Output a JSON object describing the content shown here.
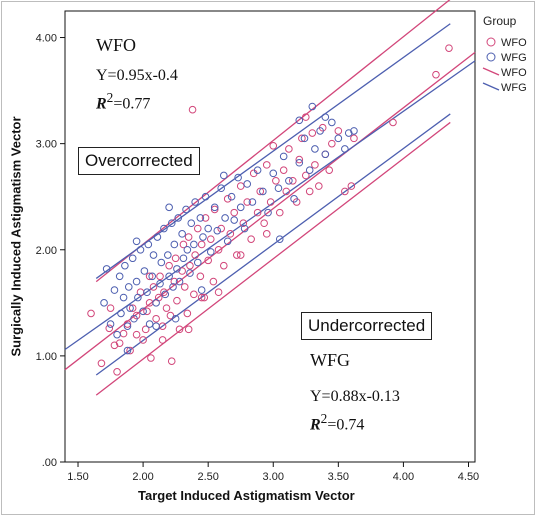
{
  "chart_data": {
    "type": "scatter",
    "xlabel": "Target Induced Astigmatism Vector",
    "ylabel": "Surgically Induced Astigmatism Vector",
    "xlim": [
      1.4,
      4.55
    ],
    "ylim": [
      0,
      4.25
    ],
    "xticks": [
      "1.50",
      "2.00",
      "2.50",
      "3.00",
      "3.50",
      "4.00",
      "4.50"
    ],
    "yticks": [
      ".00",
      "1.00",
      "2.00",
      "3.00",
      "4.00"
    ],
    "grid": false,
    "legend": {
      "title": "Group",
      "placement": "top-right",
      "entries": [
        {
          "label": "WFO",
          "kind": "marker",
          "color": "#d2467a"
        },
        {
          "label": "WFG",
          "kind": "marker",
          "color": "#4d5fb0"
        },
        {
          "label": "WFO",
          "kind": "line",
          "color": "#d2467a"
        },
        {
          "label": "WFG",
          "kind": "line",
          "color": "#4d5fb0"
        }
      ]
    },
    "series": [
      {
        "name": "WFO",
        "color": "#d2467a",
        "points": [
          [
            1.68,
            0.93
          ],
          [
            1.74,
            1.26
          ],
          [
            1.78,
            1.1
          ],
          [
            1.8,
            0.85
          ],
          [
            1.82,
            1.12
          ],
          [
            1.85,
            1.21
          ],
          [
            1.88,
            1.3
          ],
          [
            1.9,
            1.05
          ],
          [
            1.92,
            1.45
          ],
          [
            1.95,
            1.38
          ],
          [
            1.98,
            1.6
          ],
          [
            2.0,
            1.15
          ],
          [
            2.02,
            1.25
          ],
          [
            2.03,
            1.42
          ],
          [
            2.05,
            1.5
          ],
          [
            2.06,
            0.98
          ],
          [
            2.08,
            1.65
          ],
          [
            2.1,
            1.35
          ],
          [
            2.12,
            1.55
          ],
          [
            2.13,
            1.75
          ],
          [
            2.15,
            1.28
          ],
          [
            2.16,
            1.6
          ],
          [
            2.18,
            1.45
          ],
          [
            2.2,
            1.85
          ],
          [
            2.21,
            1.38
          ],
          [
            2.22,
            0.95
          ],
          [
            2.24,
            1.7
          ],
          [
            2.25,
            1.92
          ],
          [
            2.26,
            1.52
          ],
          [
            2.28,
            1.25
          ],
          [
            2.3,
            1.8
          ],
          [
            2.31,
            2.05
          ],
          [
            2.32,
            1.65
          ],
          [
            2.34,
            1.4
          ],
          [
            2.35,
            2.12
          ],
          [
            2.36,
            1.85
          ],
          [
            2.38,
            3.32
          ],
          [
            2.39,
            1.58
          ],
          [
            2.4,
            1.95
          ],
          [
            2.42,
            2.2
          ],
          [
            2.44,
            1.75
          ],
          [
            2.45,
            2.05
          ],
          [
            2.47,
            1.55
          ],
          [
            2.48,
            2.3
          ],
          [
            2.5,
            1.9
          ],
          [
            2.52,
            2.1
          ],
          [
            2.54,
            1.7
          ],
          [
            2.55,
            2.38
          ],
          [
            2.58,
            2.0
          ],
          [
            2.6,
            2.2
          ],
          [
            2.62,
            1.85
          ],
          [
            2.65,
            2.48
          ],
          [
            2.67,
            2.15
          ],
          [
            2.7,
            2.35
          ],
          [
            2.72,
            1.95
          ],
          [
            2.75,
            2.6
          ],
          [
            2.77,
            2.25
          ],
          [
            2.8,
            2.45
          ],
          [
            2.83,
            2.1
          ],
          [
            2.85,
            2.72
          ],
          [
            2.88,
            2.35
          ],
          [
            2.9,
            2.55
          ],
          [
            2.93,
            2.25
          ],
          [
            2.95,
            2.8
          ],
          [
            2.98,
            2.45
          ],
          [
            3.0,
            2.98
          ],
          [
            3.02,
            2.65
          ],
          [
            3.05,
            2.35
          ],
          [
            3.08,
            2.75
          ],
          [
            3.1,
            2.55
          ],
          [
            3.12,
            2.95
          ],
          [
            3.15,
            2.65
          ],
          [
            3.18,
            2.45
          ],
          [
            3.2,
            2.85
          ],
          [
            3.22,
            3.05
          ],
          [
            3.25,
            2.7
          ],
          [
            3.28,
            2.55
          ],
          [
            3.3,
            3.1
          ],
          [
            3.32,
            2.8
          ],
          [
            3.35,
            2.6
          ],
          [
            3.38,
            3.15
          ],
          [
            3.4,
            2.9
          ],
          [
            3.43,
            2.75
          ],
          [
            3.45,
            3.0
          ],
          [
            3.5,
            3.12
          ],
          [
            3.55,
            2.55
          ],
          [
            3.6,
            2.6
          ],
          [
            3.62,
            3.05
          ],
          [
            3.92,
            3.2
          ],
          [
            4.25,
            3.65
          ],
          [
            4.35,
            3.9
          ],
          [
            1.75,
            1.45
          ],
          [
            1.95,
            1.2
          ],
          [
            2.15,
            1.15
          ],
          [
            2.45,
            1.55
          ],
          [
            2.75,
            1.95
          ],
          [
            2.95,
            2.15
          ],
          [
            3.25,
            3.25
          ],
          [
            1.6,
            1.4
          ],
          [
            2.05,
            1.75
          ],
          [
            2.35,
            1.25
          ],
          [
            2.58,
            1.6
          ]
        ]
      },
      {
        "name": "WFG",
        "color": "#4d5fb0",
        "points": [
          [
            1.7,
            1.5
          ],
          [
            1.75,
            1.3
          ],
          [
            1.78,
            1.62
          ],
          [
            1.8,
            1.2
          ],
          [
            1.82,
            1.75
          ],
          [
            1.83,
            1.4
          ],
          [
            1.85,
            1.55
          ],
          [
            1.86,
            1.85
          ],
          [
            1.88,
            1.28
          ],
          [
            1.89,
            1.65
          ],
          [
            1.9,
            1.45
          ],
          [
            1.92,
            1.92
          ],
          [
            1.93,
            1.35
          ],
          [
            1.95,
            1.7
          ],
          [
            1.96,
            1.55
          ],
          [
            1.98,
            2.0
          ],
          [
            2.0,
            1.42
          ],
          [
            2.01,
            1.8
          ],
          [
            2.03,
            1.6
          ],
          [
            2.04,
            2.05
          ],
          [
            2.05,
            1.3
          ],
          [
            2.07,
            1.75
          ],
          [
            2.08,
            1.95
          ],
          [
            2.1,
            1.5
          ],
          [
            2.11,
            2.12
          ],
          [
            2.13,
            1.68
          ],
          [
            2.14,
            1.88
          ],
          [
            2.16,
            2.2
          ],
          [
            2.17,
            1.58
          ],
          [
            2.19,
            1.95
          ],
          [
            2.2,
            1.75
          ],
          [
            2.22,
            2.25
          ],
          [
            2.23,
            1.65
          ],
          [
            2.24,
            2.05
          ],
          [
            2.26,
            1.82
          ],
          [
            2.27,
            2.3
          ],
          [
            2.28,
            1.7
          ],
          [
            2.3,
            2.15
          ],
          [
            2.31,
            1.92
          ],
          [
            2.33,
            2.38
          ],
          [
            2.34,
            2.0
          ],
          [
            2.36,
            1.78
          ],
          [
            2.37,
            2.25
          ],
          [
            2.39,
            2.05
          ],
          [
            2.4,
            2.45
          ],
          [
            2.42,
            1.88
          ],
          [
            2.44,
            2.3
          ],
          [
            2.46,
            2.12
          ],
          [
            2.48,
            2.5
          ],
          [
            2.5,
            2.2
          ],
          [
            2.52,
            1.98
          ],
          [
            2.55,
            2.4
          ],
          [
            2.57,
            2.18
          ],
          [
            2.6,
            2.58
          ],
          [
            2.63,
            2.3
          ],
          [
            2.65,
            2.08
          ],
          [
            2.68,
            2.5
          ],
          [
            2.7,
            2.28
          ],
          [
            2.73,
            2.68
          ],
          [
            2.75,
            2.4
          ],
          [
            2.78,
            2.2
          ],
          [
            2.8,
            2.62
          ],
          [
            2.84,
            2.45
          ],
          [
            2.88,
            2.75
          ],
          [
            2.92,
            2.55
          ],
          [
            2.96,
            2.35
          ],
          [
            3.0,
            2.72
          ],
          [
            3.04,
            2.58
          ],
          [
            3.08,
            2.88
          ],
          [
            3.12,
            2.65
          ],
          [
            3.16,
            2.48
          ],
          [
            3.2,
            2.82
          ],
          [
            3.24,
            3.05
          ],
          [
            3.28,
            2.75
          ],
          [
            3.32,
            2.95
          ],
          [
            3.36,
            3.12
          ],
          [
            3.4,
            2.9
          ],
          [
            3.45,
            3.2
          ],
          [
            3.5,
            3.05
          ],
          [
            3.55,
            2.95
          ],
          [
            3.58,
            3.1
          ],
          [
            3.62,
            3.12
          ],
          [
            3.2,
            3.22
          ],
          [
            3.3,
            3.35
          ],
          [
            3.4,
            3.25
          ],
          [
            1.88,
            1.05
          ],
          [
            2.1,
            1.28
          ],
          [
            2.25,
            1.35
          ],
          [
            2.45,
            1.62
          ],
          [
            3.05,
            2.1
          ],
          [
            1.72,
            1.82
          ],
          [
            1.95,
            2.08
          ],
          [
            2.2,
            2.4
          ],
          [
            2.62,
            2.7
          ]
        ]
      }
    ],
    "fit_lines": [
      {
        "group": "WFO",
        "color": "#d2467a",
        "from": [
          1.4,
          0.87
        ],
        "to": [
          4.55,
          3.86
        ]
      },
      {
        "group": "WFG",
        "color": "#4d5fb0",
        "from": [
          1.4,
          1.06
        ],
        "to": [
          4.55,
          3.78
        ]
      },
      {
        "group": "WFO",
        "color": "#d2467a",
        "from": [
          1.64,
          1.7
        ],
        "to": [
          4.36,
          4.36
        ]
      },
      {
        "group": "WFO",
        "color": "#d2467a",
        "from": [
          1.64,
          0.63
        ],
        "to": [
          4.36,
          3.2
        ]
      },
      {
        "group": "WFG",
        "color": "#4d5fb0",
        "from": [
          1.64,
          1.73
        ],
        "to": [
          4.36,
          4.13
        ]
      },
      {
        "group": "WFG",
        "color": "#4d5fb0",
        "from": [
          1.64,
          0.82
        ],
        "to": [
          4.36,
          3.28
        ]
      }
    ],
    "annotations": {
      "overcorrected": "Overcorrected",
      "undercorrected": "Undercorrected",
      "wfo_title": "WFO",
      "wfo_eq": "Y=0.95x-0.4",
      "wfo_r2_label": "R",
      "wfo_r2_sup": "2",
      "wfo_r2_val": "=0.77",
      "wfg_title": "WFG",
      "wfg_eq": "Y=0.88x-0.13",
      "wfg_r2_label": "R",
      "wfg_r2_sup": "2",
      "wfg_r2_val": "=0.74"
    }
  }
}
